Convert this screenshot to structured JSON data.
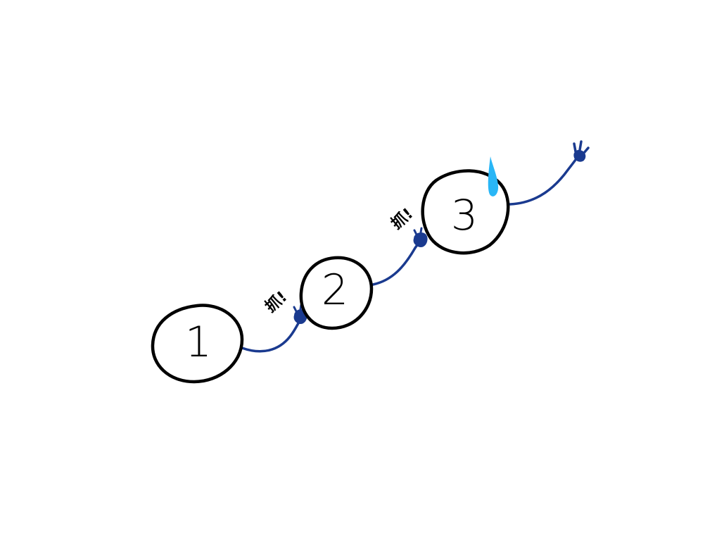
{
  "diagram": {
    "nodes": [
      {
        "label": "1"
      },
      {
        "label": "2"
      },
      {
        "label": "3"
      }
    ],
    "grab_labels": [
      {
        "text": "抓!"
      },
      {
        "text": "抓!"
      }
    ],
    "colors": {
      "background": "#ffffff",
      "node_outline": "#000000",
      "label": "#000000",
      "arm": "#1a3a8f",
      "hand": "#1a3a8f",
      "sweat_drop": "#29b6f6"
    },
    "decorations": [
      "grabbing-hand-icon",
      "grabbing-hand-icon",
      "reaching-hand-icon",
      "sweat-drop-icon"
    ]
  }
}
